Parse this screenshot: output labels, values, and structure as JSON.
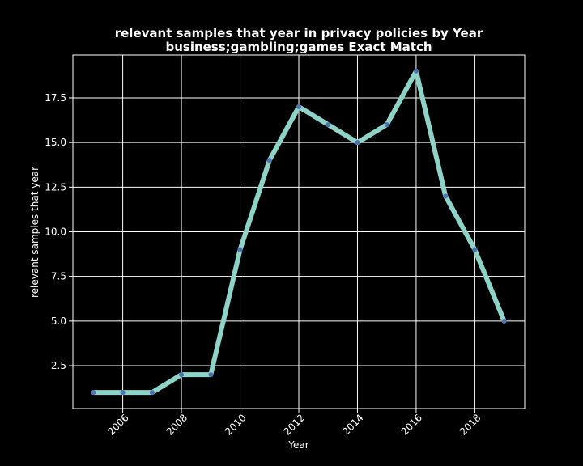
{
  "chart_data": {
    "type": "line",
    "title": "relevant samples that year in privacy policies by Year",
    "subtitle": "business;gambling;games Exact Match",
    "xlabel": "Year",
    "ylabel": "relevant samples that year",
    "x": [
      2005,
      2006,
      2007,
      2008,
      2009,
      2010,
      2011,
      2012,
      2013,
      2014,
      2015,
      2016,
      2017,
      2018,
      2019
    ],
    "series": [
      {
        "values": [
          1,
          1,
          1,
          2,
          2,
          9,
          14,
          17,
          16,
          15,
          16,
          19,
          12,
          9,
          5
        ]
      }
    ],
    "xlim": [
      2004.3,
      2019.7
    ],
    "ylim": [
      0.1,
      19.9
    ],
    "xticks": [
      "2006",
      "2008",
      "2010",
      "2012",
      "2014",
      "2016",
      "2018"
    ],
    "yticks": [
      "2.5",
      "5.0",
      "7.5",
      "10.0",
      "12.5",
      "15.0",
      "17.5"
    ],
    "grid": true,
    "background": "#000000",
    "line_color": "#8dd3c7",
    "marker_color": "#4c72b0",
    "text_color": "#ffffff"
  }
}
